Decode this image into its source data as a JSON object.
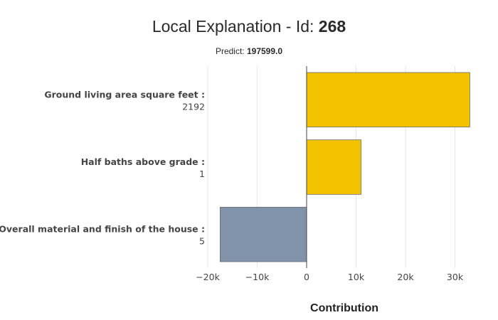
{
  "title": {
    "prefix": "Local Explanation - Id: ",
    "id": "268"
  },
  "subtitle": {
    "prefix": "Predict: ",
    "value": "197599.0"
  },
  "colors": {
    "positive": "#f2c100",
    "negative": "#8192ab",
    "bar_border": "#6b6b6b"
  },
  "chart_data": {
    "type": "bar",
    "orientation": "horizontal",
    "xlabel": "Contribution",
    "xlim": [
      -20000,
      33000
    ],
    "xticks": [
      -20000,
      -10000,
      0,
      10000,
      20000,
      30000
    ],
    "xtick_labels": [
      "−20k",
      "−10k",
      "0",
      "10k",
      "20k",
      "30k"
    ],
    "grid": true,
    "categories": [
      {
        "name": "Ground living area square feet :",
        "value": "2192"
      },
      {
        "name": "Half baths above grade :",
        "value": "1"
      },
      {
        "name": "Overall material and finish of the house :",
        "value": "5"
      }
    ],
    "values": [
      33000,
      11000,
      -17500
    ]
  }
}
